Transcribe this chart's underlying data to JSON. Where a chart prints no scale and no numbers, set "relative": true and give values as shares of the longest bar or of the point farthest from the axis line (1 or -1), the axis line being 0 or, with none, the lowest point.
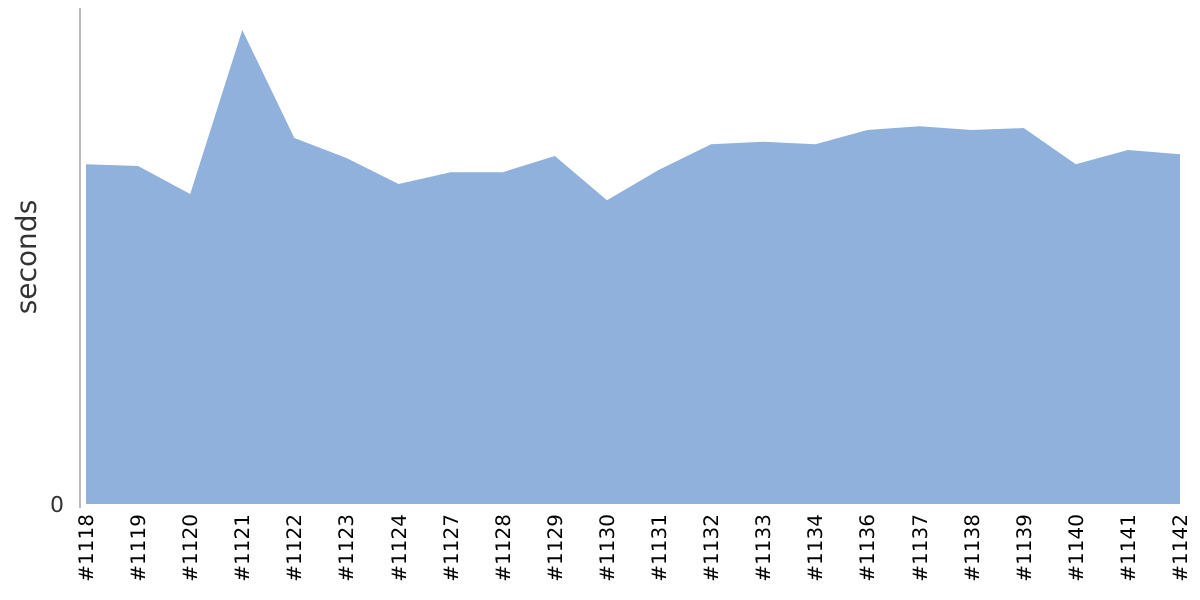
{
  "chart_data": {
    "type": "area",
    "ylabel": "seconds",
    "relative": true,
    "annotations": [
      "0"
    ],
    "categories": [
      "#1118",
      "#1119",
      "#1120",
      "#1121",
      "#1122",
      "#1123",
      "#1124",
      "#1127",
      "#1128",
      "#1129",
      "#1130",
      "#1131",
      "#1132",
      "#1133",
      "#1134",
      "#1136",
      "#1137",
      "#1138",
      "#1139",
      "#1140",
      "#1141",
      "#1142"
    ],
    "series": [
      {
        "color": "#8fb1db",
        "values": [
          0.717,
          0.713,
          0.654,
          1,
          0.772,
          0.73,
          0.675,
          0.7,
          0.7,
          0.734,
          0.641,
          0.705,
          0.759,
          0.764,
          0.759,
          0.789,
          0.797,
          0.789,
          0.793,
          0.717,
          0.747,
          0.738
        ]
      }
    ]
  }
}
